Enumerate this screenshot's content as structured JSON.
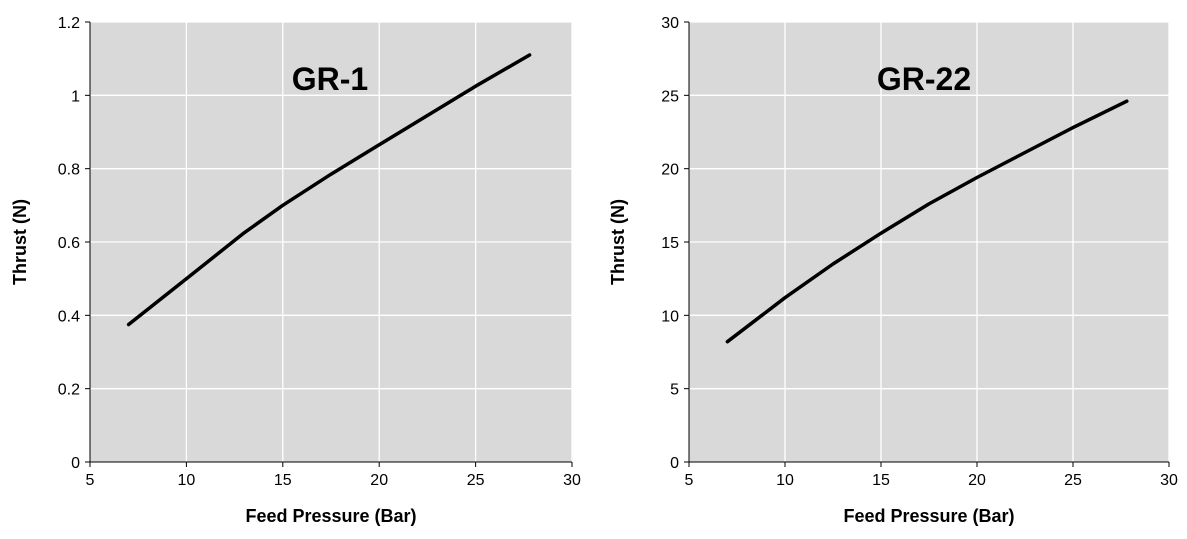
{
  "chart_data": [
    {
      "type": "line",
      "title": "GR-1",
      "xlabel": "Feed Pressure (Bar)",
      "ylabel": "Thrust (N)",
      "xlim": [
        5,
        30
      ],
      "ylim": [
        0,
        1.2
      ],
      "xticks": [
        "5",
        "10",
        "15",
        "20",
        "25",
        "30"
      ],
      "yticks": [
        "0",
        "0.2",
        "0.4",
        "0.6",
        "0.8",
        "1",
        "1.2"
      ],
      "grid": true,
      "background_color": "#d9d9d9",
      "grid_color": "#ffffff",
      "line_color": "#000000",
      "series": [
        {
          "x": [
            7,
            10,
            13,
            15,
            17.5,
            20,
            22.5,
            25,
            27.8
          ],
          "y": [
            0.375,
            0.5,
            0.625,
            0.7,
            0.785,
            0.865,
            0.945,
            1.025,
            1.11
          ]
        }
      ]
    },
    {
      "type": "line",
      "title": "GR-22",
      "xlabel": "Feed Pressure (Bar)",
      "ylabel": "Thrust (N)",
      "xlim": [
        5,
        30
      ],
      "ylim": [
        0,
        30
      ],
      "xticks": [
        "5",
        "10",
        "15",
        "20",
        "25",
        "30"
      ],
      "yticks": [
        "0",
        "5",
        "10",
        "15",
        "20",
        "25",
        "30"
      ],
      "grid": true,
      "background_color": "#d9d9d9",
      "grid_color": "#ffffff",
      "line_color": "#000000",
      "series": [
        {
          "x": [
            7,
            10,
            12.5,
            15,
            17.5,
            20,
            22.5,
            25,
            27.8
          ],
          "y": [
            8.2,
            11.2,
            13.5,
            15.6,
            17.6,
            19.4,
            21.1,
            22.8,
            24.6
          ]
        }
      ]
    }
  ]
}
